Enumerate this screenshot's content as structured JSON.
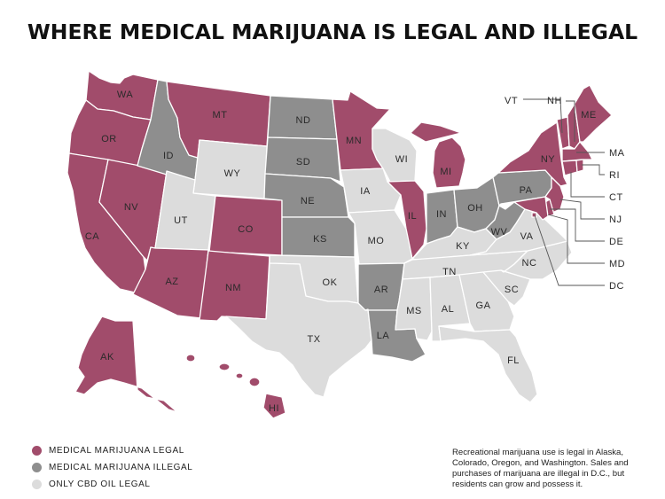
{
  "title": "WHERE MEDICAL MARIJUANA IS LEGAL AND ILLEGAL",
  "colors": {
    "legal": "#a14c6b",
    "illegal": "#8e8e8e",
    "cbd": "#dcdcdc"
  },
  "legend": [
    {
      "label": "MEDICAL MARIJUANA LEGAL",
      "status": "legal"
    },
    {
      "label": "MEDICAL MARIJUANA ILLEGAL",
      "status": "illegal"
    },
    {
      "label": "ONLY CBD OIL LEGAL",
      "status": "cbd"
    }
  ],
  "note": "Recreational marijuana use is legal in Alaska, Colorado, Oregon, and Washington. Sales and purchases of marijuana are illegal in D.C., but residents can grow and possess it.",
  "states": [
    {
      "abbr": "WA",
      "status": "legal"
    },
    {
      "abbr": "OR",
      "status": "legal"
    },
    {
      "abbr": "CA",
      "status": "legal"
    },
    {
      "abbr": "NV",
      "status": "legal"
    },
    {
      "abbr": "ID",
      "status": "illegal"
    },
    {
      "abbr": "MT",
      "status": "legal"
    },
    {
      "abbr": "WY",
      "status": "cbd"
    },
    {
      "abbr": "UT",
      "status": "cbd"
    },
    {
      "abbr": "AZ",
      "status": "legal"
    },
    {
      "abbr": "CO",
      "status": "legal"
    },
    {
      "abbr": "NM",
      "status": "legal"
    },
    {
      "abbr": "ND",
      "status": "illegal"
    },
    {
      "abbr": "SD",
      "status": "illegal"
    },
    {
      "abbr": "NE",
      "status": "illegal"
    },
    {
      "abbr": "KS",
      "status": "illegal"
    },
    {
      "abbr": "OK",
      "status": "cbd"
    },
    {
      "abbr": "TX",
      "status": "cbd"
    },
    {
      "abbr": "MN",
      "status": "legal"
    },
    {
      "abbr": "IA",
      "status": "cbd"
    },
    {
      "abbr": "MO",
      "status": "cbd"
    },
    {
      "abbr": "AR",
      "status": "illegal"
    },
    {
      "abbr": "LA",
      "status": "illegal"
    },
    {
      "abbr": "WI",
      "status": "cbd"
    },
    {
      "abbr": "IL",
      "status": "legal"
    },
    {
      "abbr": "MI",
      "status": "legal"
    },
    {
      "abbr": "IN",
      "status": "illegal"
    },
    {
      "abbr": "OH",
      "status": "illegal"
    },
    {
      "abbr": "KY",
      "status": "cbd"
    },
    {
      "abbr": "TN",
      "status": "cbd"
    },
    {
      "abbr": "MS",
      "status": "cbd"
    },
    {
      "abbr": "AL",
      "status": "cbd"
    },
    {
      "abbr": "GA",
      "status": "cbd"
    },
    {
      "abbr": "FL",
      "status": "cbd"
    },
    {
      "abbr": "SC",
      "status": "cbd"
    },
    {
      "abbr": "NC",
      "status": "cbd"
    },
    {
      "abbr": "VA",
      "status": "cbd"
    },
    {
      "abbr": "WV",
      "status": "illegal"
    },
    {
      "abbr": "PA",
      "status": "illegal"
    },
    {
      "abbr": "NY",
      "status": "legal"
    },
    {
      "abbr": "VT",
      "status": "legal"
    },
    {
      "abbr": "NH",
      "status": "legal"
    },
    {
      "abbr": "ME",
      "status": "legal"
    },
    {
      "abbr": "MA",
      "status": "legal"
    },
    {
      "abbr": "RI",
      "status": "legal"
    },
    {
      "abbr": "CT",
      "status": "legal"
    },
    {
      "abbr": "NJ",
      "status": "legal"
    },
    {
      "abbr": "DE",
      "status": "legal"
    },
    {
      "abbr": "MD",
      "status": "legal"
    },
    {
      "abbr": "DC",
      "status": "legal"
    },
    {
      "abbr": "AK",
      "status": "legal"
    },
    {
      "abbr": "HI",
      "status": "legal"
    }
  ]
}
